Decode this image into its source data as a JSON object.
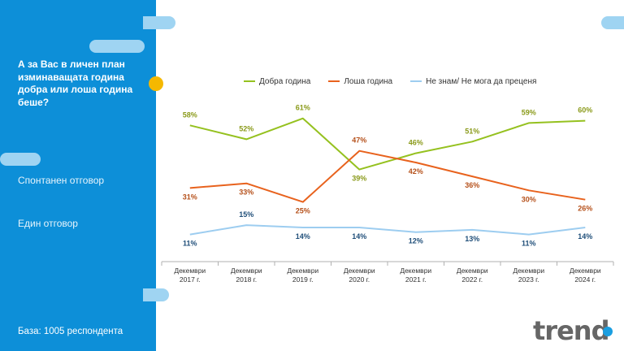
{
  "sidebar": {
    "question": "А за Вас в личен план изминаващата година добра или лоша година беше?",
    "note_spontaneous": "Спонтанен отговор",
    "note_single": "Един отговор",
    "base": "База:  1005 респондента"
  },
  "logo": "trend",
  "colors": {
    "good": "#95c11f",
    "bad": "#e8621d",
    "dontknow": "#9dcdf0",
    "sidebar": "#0d8fd8"
  },
  "chart_data": {
    "type": "line",
    "categories": [
      [
        "Декември",
        "2017 г."
      ],
      [
        "Декември",
        "2018 г."
      ],
      [
        "Декември",
        "2019 г."
      ],
      [
        "Декември",
        "2020 г."
      ],
      [
        "Декември",
        "2021 г."
      ],
      [
        "Декември",
        "2022 г."
      ],
      [
        "Декември",
        "2023 г."
      ],
      [
        "Декември",
        "2024 г."
      ]
    ],
    "series": [
      {
        "name": "Добра година",
        "color": "#95c11f",
        "labelColor": "#8a9a1a",
        "values": [
          58,
          52,
          61,
          39,
          46,
          51,
          59,
          60
        ],
        "labels": [
          "58%",
          "52%",
          "61%",
          "39%",
          "46%",
          "51%",
          "59%",
          "60%"
        ]
      },
      {
        "name": "Лоша година",
        "color": "#e8621d",
        "labelColor": "#b5501a",
        "values": [
          31,
          33,
          25,
          47,
          42,
          36,
          30,
          26
        ],
        "labels": [
          "31%",
          "33%",
          "25%",
          "47%",
          "42%",
          "36%",
          "30%",
          "26%"
        ]
      },
      {
        "name": "Не знам/ Не мога да преценя",
        "color": "#9dcdf0",
        "labelColor": "#1f4e79",
        "values": [
          11,
          15,
          14,
          14,
          12,
          13,
          11,
          14
        ],
        "labels": [
          "11%",
          "15%",
          "14%",
          "14%",
          "12%",
          "13%",
          "11%",
          "14%"
        ]
      }
    ],
    "ylim": [
      0,
      70
    ],
    "legend": "top",
    "grid": false
  }
}
